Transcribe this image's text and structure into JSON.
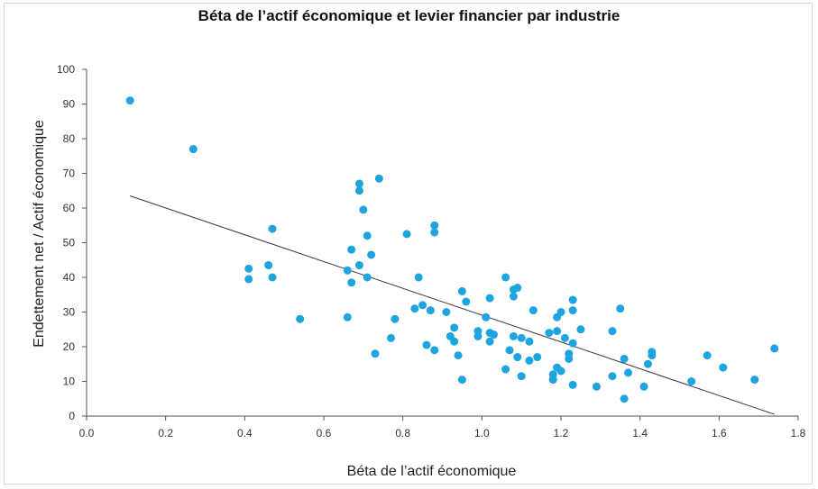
{
  "chart_data": {
    "type": "scatter",
    "title": "Béta de l’actif économique  et levier financier  par industrie",
    "xlabel": "Béta de l’actif économique",
    "ylabel": "Endettement net / Actif économique",
    "xlim": [
      0.0,
      1.8
    ],
    "ylim": [
      0,
      100
    ],
    "xticks": [
      "0.0",
      "0.2",
      "0.4",
      "0.6",
      "0.8",
      "1.0",
      "1.2",
      "1.4",
      "1.6",
      "1.8"
    ],
    "yticks": [
      "0",
      "10",
      "20",
      "30",
      "40",
      "50",
      "60",
      "70",
      "80",
      "90",
      "100"
    ],
    "grid": false,
    "legend": "none",
    "colors": {
      "point": "#1ea5df",
      "trend": "#333333",
      "axis": "#555555"
    },
    "trendline": {
      "x": [
        0.11,
        1.74
      ],
      "y": [
        63.5,
        0.5
      ]
    },
    "points": [
      {
        "x": 0.11,
        "y": 91
      },
      {
        "x": 0.27,
        "y": 77
      },
      {
        "x": 0.41,
        "y": 42.5
      },
      {
        "x": 0.41,
        "y": 39.5
      },
      {
        "x": 0.46,
        "y": 43.5
      },
      {
        "x": 0.47,
        "y": 54
      },
      {
        "x": 0.47,
        "y": 40
      },
      {
        "x": 0.54,
        "y": 28
      },
      {
        "x": 0.66,
        "y": 42
      },
      {
        "x": 0.66,
        "y": 28.5
      },
      {
        "x": 0.67,
        "y": 48
      },
      {
        "x": 0.67,
        "y": 38.5
      },
      {
        "x": 0.69,
        "y": 67
      },
      {
        "x": 0.69,
        "y": 65
      },
      {
        "x": 0.69,
        "y": 43.5
      },
      {
        "x": 0.7,
        "y": 59.5
      },
      {
        "x": 0.71,
        "y": 52
      },
      {
        "x": 0.71,
        "y": 40
      },
      {
        "x": 0.72,
        "y": 46.5
      },
      {
        "x": 0.73,
        "y": 18
      },
      {
        "x": 0.74,
        "y": 68.5
      },
      {
        "x": 0.77,
        "y": 22.5
      },
      {
        "x": 0.78,
        "y": 28
      },
      {
        "x": 0.81,
        "y": 52.5
      },
      {
        "x": 0.83,
        "y": 31
      },
      {
        "x": 0.84,
        "y": 40
      },
      {
        "x": 0.85,
        "y": 32
      },
      {
        "x": 0.86,
        "y": 20.5
      },
      {
        "x": 0.87,
        "y": 30.5
      },
      {
        "x": 0.88,
        "y": 55
      },
      {
        "x": 0.88,
        "y": 53
      },
      {
        "x": 0.88,
        "y": 19
      },
      {
        "x": 0.91,
        "y": 30
      },
      {
        "x": 0.92,
        "y": 23
      },
      {
        "x": 0.93,
        "y": 25.5
      },
      {
        "x": 0.93,
        "y": 21.5
      },
      {
        "x": 0.94,
        "y": 17.5
      },
      {
        "x": 0.95,
        "y": 36
      },
      {
        "x": 0.95,
        "y": 10.5
      },
      {
        "x": 0.96,
        "y": 33
      },
      {
        "x": 0.99,
        "y": 24.5
      },
      {
        "x": 0.99,
        "y": 23
      },
      {
        "x": 1.01,
        "y": 28.5
      },
      {
        "x": 1.02,
        "y": 34
      },
      {
        "x": 1.02,
        "y": 24
      },
      {
        "x": 1.02,
        "y": 21.5
      },
      {
        "x": 1.03,
        "y": 23.5
      },
      {
        "x": 1.06,
        "y": 40
      },
      {
        "x": 1.06,
        "y": 13.5
      },
      {
        "x": 1.07,
        "y": 19
      },
      {
        "x": 1.08,
        "y": 36.5
      },
      {
        "x": 1.08,
        "y": 34.5
      },
      {
        "x": 1.08,
        "y": 23
      },
      {
        "x": 1.09,
        "y": 37
      },
      {
        "x": 1.09,
        "y": 17
      },
      {
        "x": 1.1,
        "y": 22.5
      },
      {
        "x": 1.1,
        "y": 11.5
      },
      {
        "x": 1.12,
        "y": 21.5
      },
      {
        "x": 1.12,
        "y": 16
      },
      {
        "x": 1.13,
        "y": 30.5
      },
      {
        "x": 1.14,
        "y": 17
      },
      {
        "x": 1.17,
        "y": 24
      },
      {
        "x": 1.18,
        "y": 12
      },
      {
        "x": 1.18,
        "y": 10.5
      },
      {
        "x": 1.19,
        "y": 28.5
      },
      {
        "x": 1.19,
        "y": 24.5
      },
      {
        "x": 1.19,
        "y": 14
      },
      {
        "x": 1.2,
        "y": 30
      },
      {
        "x": 1.2,
        "y": 13
      },
      {
        "x": 1.21,
        "y": 22.5
      },
      {
        "x": 1.22,
        "y": 18
      },
      {
        "x": 1.22,
        "y": 16.5
      },
      {
        "x": 1.23,
        "y": 33.5
      },
      {
        "x": 1.23,
        "y": 30.5
      },
      {
        "x": 1.23,
        "y": 21
      },
      {
        "x": 1.23,
        "y": 9
      },
      {
        "x": 1.25,
        "y": 25
      },
      {
        "x": 1.29,
        "y": 8.5
      },
      {
        "x": 1.33,
        "y": 24.5
      },
      {
        "x": 1.33,
        "y": 11.5
      },
      {
        "x": 1.35,
        "y": 31
      },
      {
        "x": 1.36,
        "y": 16.5
      },
      {
        "x": 1.36,
        "y": 5
      },
      {
        "x": 1.37,
        "y": 12.5
      },
      {
        "x": 1.41,
        "y": 8.5
      },
      {
        "x": 1.42,
        "y": 15
      },
      {
        "x": 1.43,
        "y": 18.5
      },
      {
        "x": 1.43,
        "y": 17.5
      },
      {
        "x": 1.53,
        "y": 10
      },
      {
        "x": 1.57,
        "y": 17.5
      },
      {
        "x": 1.61,
        "y": 14
      },
      {
        "x": 1.69,
        "y": 10.5
      },
      {
        "x": 1.74,
        "y": 19.5
      }
    ]
  }
}
